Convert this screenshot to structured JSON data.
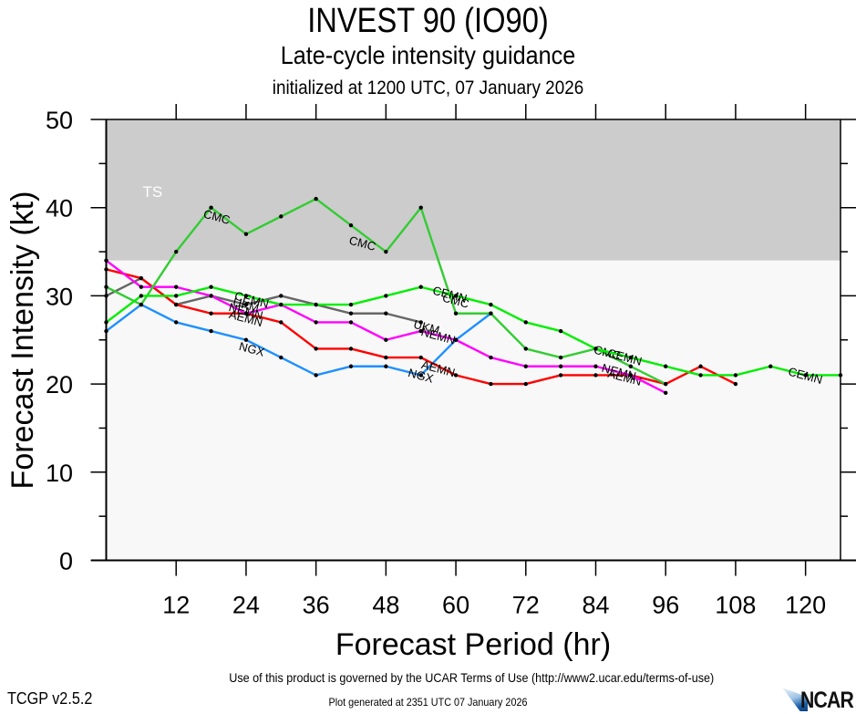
{
  "header": {
    "title": "INVEST 90 (IO90)",
    "subtitle": "Late-cycle intensity guidance",
    "init_line": "initialized at 1200 UTC, 07 January 2026"
  },
  "footer": {
    "terms": "Use of this product is governed by the UCAR Terms of Use (http://www2.ucar.edu/terms-of-use)",
    "version": "TCGP v2.5.2",
    "generated": "Plot generated at 2351 UTC   07 January 2026",
    "logo_text": "NCAR"
  },
  "chart_data": {
    "type": "line",
    "title": "INVEST 90 (IO90)",
    "subtitle": "Late-cycle intensity guidance",
    "xlabel": "Forecast Period (hr)",
    "ylabel": "Forecast Intensity (kt)",
    "xlim": [
      0,
      126
    ],
    "ylim": [
      0,
      50
    ],
    "xticks": [
      12,
      24,
      36,
      48,
      60,
      72,
      84,
      96,
      108,
      120
    ],
    "yticks": [
      0,
      10,
      20,
      30,
      40,
      50
    ],
    "grid": false,
    "bands": [
      {
        "label": "TS",
        "from": 34,
        "to": 50,
        "color": "#cccccc"
      },
      {
        "label": "",
        "from": 0,
        "to": 34,
        "color": "#f8f8f8"
      }
    ],
    "series": [
      {
        "name": "NGX",
        "color": "#1e90ff",
        "x": [
          0,
          6,
          12,
          18,
          24,
          30,
          36,
          42,
          48,
          54,
          60,
          66
        ],
        "y": [
          26,
          29,
          27,
          26,
          25,
          23,
          21,
          22,
          22,
          21,
          25,
          28
        ],
        "labels": [
          {
            "x": 25,
            "y": 24
          },
          {
            "x": 54,
            "y": 21
          }
        ]
      },
      {
        "name": "UKM",
        "color": "#666666",
        "x": [
          0,
          6,
          12,
          18,
          24,
          30,
          36,
          42,
          48,
          54
        ],
        "y": [
          30,
          32,
          29,
          30,
          29,
          30,
          29,
          28,
          28,
          27
        ],
        "labels": [
          {
            "x": 24,
            "y": 29
          },
          {
            "x": 55,
            "y": 26.5
          }
        ]
      },
      {
        "name": "AEMN",
        "color": "#ff0000",
        "x": [
          0,
          6,
          12,
          18,
          24,
          30,
          36,
          42,
          48,
          54,
          60,
          66,
          72,
          78,
          84,
          90,
          96,
          102,
          108
        ],
        "y": [
          33,
          32,
          29,
          28,
          28,
          27,
          24,
          24,
          23,
          23,
          21,
          20,
          20,
          21,
          21,
          21,
          20,
          22,
          20
        ],
        "labels": [
          {
            "x": 24,
            "y": 27.5
          },
          {
            "x": 57,
            "y": 21.8
          },
          {
            "x": 89,
            "y": 20.8
          }
        ]
      },
      {
        "name": "NEMN",
        "color": "#ff00ff",
        "x": [
          0,
          6,
          12,
          18,
          24,
          30,
          36,
          42,
          48,
          54,
          60,
          66,
          72,
          78,
          84,
          90,
          96
        ],
        "y": [
          34,
          31,
          31,
          30,
          28,
          29,
          27,
          27,
          25,
          26,
          25,
          23,
          22,
          22,
          22,
          21,
          19
        ],
        "labels": [
          {
            "x": 24,
            "y": 28.3
          },
          {
            "x": 57,
            "y": 25.5
          },
          {
            "x": 88,
            "y": 21.4
          }
        ]
      },
      {
        "name": "CMC",
        "color": "#33cc33",
        "x": [
          0,
          6,
          12,
          18,
          24,
          30,
          36,
          42,
          48,
          54,
          60,
          66,
          72,
          78,
          84,
          90,
          96
        ],
        "y": [
          31,
          29,
          35,
          40,
          37,
          39,
          41,
          38,
          35,
          40,
          28,
          28,
          24,
          23,
          24,
          22,
          20
        ],
        "labels": [
          {
            "x": 19,
            "y": 39
          },
          {
            "x": 44,
            "y": 36
          },
          {
            "x": 60,
            "y": 29.5
          },
          {
            "x": 86,
            "y": 23.6
          }
        ]
      },
      {
        "name": "CEMN",
        "color": "#00ee00",
        "x": [
          0,
          6,
          12,
          18,
          24,
          30,
          36,
          42,
          48,
          54,
          60,
          66,
          72,
          78,
          84,
          90,
          96,
          102,
          108,
          114,
          120,
          126
        ],
        "y": [
          27,
          30,
          30,
          31,
          30,
          29,
          29,
          29,
          30,
          31,
          30,
          29,
          27,
          26,
          24,
          23,
          22,
          21,
          21,
          22,
          21,
          21
        ],
        "labels": [
          {
            "x": 25,
            "y": 29.6
          },
          {
            "x": 59,
            "y": 30.2
          },
          {
            "x": 89,
            "y": 23.1
          },
          {
            "x": 120,
            "y": 21
          }
        ]
      }
    ],
    "legend": "none (series labeled inline)"
  }
}
